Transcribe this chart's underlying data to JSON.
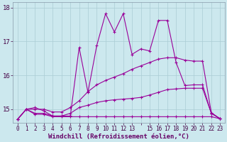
{
  "xlabel": "Windchill (Refroidissement éolien,°C)",
  "x_hours": [
    0,
    1,
    2,
    3,
    4,
    5,
    6,
    7,
    8,
    9,
    10,
    11,
    12,
    13,
    14,
    15,
    16,
    17,
    18,
    19,
    20,
    21,
    22,
    23
  ],
  "line1": [
    14.7,
    15.0,
    14.85,
    14.85,
    14.78,
    14.78,
    14.78,
    14.78,
    14.78,
    14.78,
    14.78,
    14.78,
    14.78,
    14.78,
    14.78,
    14.78,
    14.78,
    14.78,
    14.78,
    14.78,
    14.78,
    14.78,
    14.78,
    14.72
  ],
  "line2": [
    14.7,
    15.0,
    14.88,
    14.88,
    14.8,
    14.8,
    14.88,
    15.05,
    15.12,
    15.2,
    15.25,
    15.28,
    15.3,
    15.32,
    15.35,
    15.42,
    15.5,
    15.58,
    15.6,
    15.62,
    15.62,
    15.62,
    14.88,
    14.72
  ],
  "line3": [
    14.7,
    15.0,
    15.0,
    15.0,
    14.92,
    14.92,
    15.05,
    15.25,
    15.52,
    15.72,
    15.85,
    15.95,
    16.05,
    16.18,
    16.28,
    16.38,
    16.48,
    16.52,
    16.52,
    16.45,
    16.42,
    16.42,
    14.9,
    14.72
  ],
  "line4": [
    14.7,
    15.0,
    15.05,
    14.95,
    14.8,
    14.8,
    14.8,
    16.82,
    15.5,
    16.88,
    17.82,
    17.28,
    17.82,
    16.62,
    16.78,
    16.72,
    17.62,
    17.62,
    16.38,
    15.7,
    15.72,
    15.72,
    14.88,
    14.72
  ],
  "bg_color": "#cce8ee",
  "grid_color": "#aaccd4",
  "line_color": "#990099",
  "ylim_min": 14.6,
  "ylim_max": 18.15,
  "yticks": [
    15,
    16,
    17,
    18
  ],
  "marker": "+",
  "marker_size": 3,
  "marker_ew": 0.8,
  "line_width": 0.8
}
